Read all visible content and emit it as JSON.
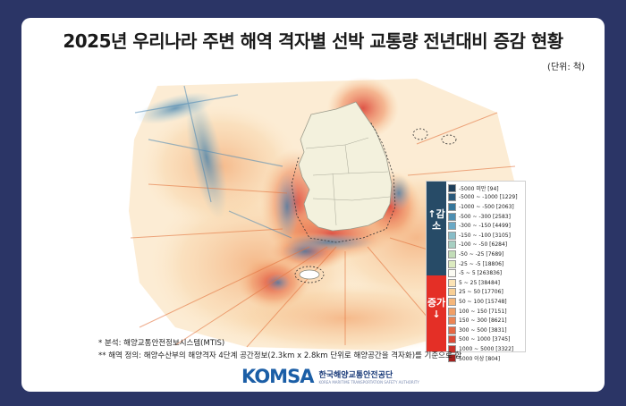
{
  "title": "2025년 우리나라 주변 해역 격자별 선박 교통량 전년대비 증감 현황",
  "unit": "(단위: 척)",
  "legend": {
    "decrease_label": "↑감소",
    "increase_label": "증가↓",
    "items": [
      {
        "label": "-5000 미만 [94]",
        "color": "#1f3f5b"
      },
      {
        "label": "-5000 ~ -1000 [1229]",
        "color": "#2a5a7c"
      },
      {
        "label": "-1000 ~ -500 [2063]",
        "color": "#35779c"
      },
      {
        "label": "-500 ~ -300 [2583]",
        "color": "#4d8fb3"
      },
      {
        "label": "-300 ~ -150 [4499]",
        "color": "#6aa9c6"
      },
      {
        "label": "-150 ~ -100 [3105]",
        "color": "#87bdc8"
      },
      {
        "label": "-100 ~ -50 [6284]",
        "color": "#a6cfc2"
      },
      {
        "label": "-50 ~ -25 [7689]",
        "color": "#c2ddb8"
      },
      {
        "label": "-25 ~ -5 [18806]",
        "color": "#dcebc0"
      },
      {
        "label": "-5 ~ 5 [263836]",
        "color": "#fbfbf3"
      },
      {
        "label": "5 ~ 25 [38484]",
        "color": "#fbe3b5"
      },
      {
        "label": "25 ~ 50 [17706]",
        "color": "#f8cf95"
      },
      {
        "label": "50 ~ 100 [15748]",
        "color": "#f5b67a"
      },
      {
        "label": "100 ~ 150 [7151]",
        "color": "#f19f66"
      },
      {
        "label": "150 ~ 300 [8621]",
        "color": "#ec8453"
      },
      {
        "label": "300 ~ 500 [3831]",
        "color": "#e66844"
      },
      {
        "label": "500 ~ 1000 [3745]",
        "color": "#dd4b37"
      },
      {
        "label": "1000 ~ 5000 [3322]",
        "color": "#c8322a"
      },
      {
        "label": "5000 이상 [804]",
        "color": "#a2201d"
      }
    ]
  },
  "notes": [
    "* 분석: 해양교통안전정보시스템(MTIS)",
    "** 해역 정의: 해양수산부의 해양격자 4단계 공간정보(2.3km x 2.8km 단위로 해양공간을 격자화)를 기준으로 함"
  ],
  "logo": {
    "mark": "KOMSA",
    "name_kr": "한국해양교통안전공단",
    "name_en": "KOREA MARITIME TRANSPORTATION SAFETY AUTHORITY"
  },
  "colors": {
    "background": "#2b3566",
    "land": "#f3f1dd",
    "decrease": "#274b67",
    "increase": "#e42f26"
  }
}
